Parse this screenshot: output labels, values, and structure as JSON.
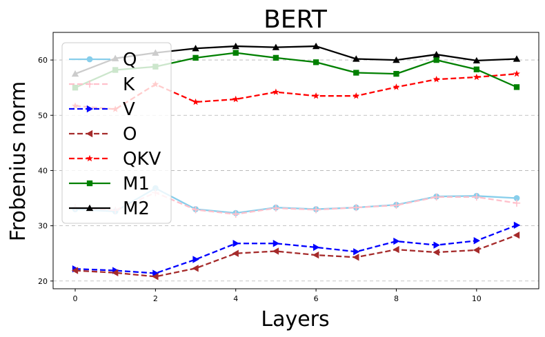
{
  "chart_data": {
    "type": "line",
    "title": "BERT",
    "xlabel": "Layers",
    "ylabel": "Frobenius norm",
    "xlim": [
      -0.55,
      11.55
    ],
    "ylim": [
      18.6,
      65.0
    ],
    "xticks": [
      0,
      2,
      4,
      6,
      8,
      10
    ],
    "yticks": [
      20,
      30,
      40,
      50,
      60
    ],
    "grid": "y-dashed",
    "legend_position": "upper-left",
    "x": [
      0,
      1,
      2,
      3,
      4,
      5,
      6,
      7,
      8,
      9,
      10,
      11
    ],
    "series": [
      {
        "name": "Q",
        "color": "#87ceeb",
        "dash": "solid",
        "marker": "circle",
        "values": [
          33.0,
          32.6,
          36.8,
          33.0,
          32.3,
          33.3,
          33.0,
          33.3,
          33.8,
          35.3,
          35.4,
          35.0
        ]
      },
      {
        "name": "K",
        "color": "#ffc0cb",
        "dash": "dashed",
        "marker": "plus",
        "values": [
          33.3,
          32.8,
          36.0,
          32.9,
          32.1,
          33.2,
          32.9,
          33.3,
          33.7,
          35.2,
          35.2,
          34.1
        ]
      },
      {
        "name": "V",
        "color": "#0000ff",
        "dash": "dashed",
        "marker": "triangle-right",
        "values": [
          22.2,
          21.9,
          21.4,
          23.9,
          26.8,
          26.8,
          26.1,
          25.3,
          27.2,
          26.5,
          27.3,
          30.1
        ]
      },
      {
        "name": "O",
        "color": "#a52a2a",
        "dash": "dashed",
        "marker": "triangle-left",
        "values": [
          21.9,
          21.5,
          20.8,
          22.3,
          25.0,
          25.4,
          24.7,
          24.3,
          25.7,
          25.2,
          25.6,
          28.3
        ]
      },
      {
        "name": "QKV",
        "color": "#ff0000",
        "dash": "dashed",
        "marker": "star",
        "values": [
          51.7,
          51.1,
          55.6,
          52.4,
          52.9,
          54.2,
          53.5,
          53.5,
          55.1,
          56.5,
          56.9,
          57.5
        ]
      },
      {
        "name": "M1",
        "color": "#008000",
        "dash": "solid",
        "marker": "square",
        "values": [
          55.0,
          58.2,
          58.8,
          60.4,
          61.3,
          60.4,
          59.6,
          57.7,
          57.5,
          60.0,
          58.3,
          55.1
        ]
      },
      {
        "name": "M2",
        "color": "#000000",
        "dash": "solid",
        "marker": "triangle-up",
        "values": [
          57.5,
          60.3,
          61.3,
          62.1,
          62.5,
          62.3,
          62.5,
          60.2,
          60.0,
          61.0,
          59.9,
          60.2
        ]
      }
    ]
  }
}
